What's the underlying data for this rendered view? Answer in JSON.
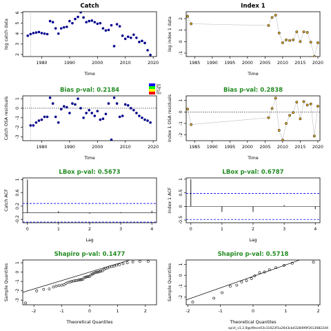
{
  "footer": "spict_v1.2.8@d9ece03c31623f1a26d3cb4328499f16136822d4",
  "colors": {
    "bias_title": "#228B22",
    "points_catch": "#00008B",
    "points_index": "#DAA520",
    "dash_blue": "#0000FF",
    "grey_line": "#BEBEBE"
  },
  "legend_years": [
    "Jan",
    "Apr",
    "Jul",
    "Oct"
  ],
  "chart_data": [
    {
      "id": "catch",
      "type": "scatter",
      "title": "Catch",
      "title_color": "#000000",
      "xlabel": "Time",
      "ylabel": "log catch data",
      "xlim": [
        1973.2,
        2021.2
      ],
      "ylim": [
        1.8,
        6.1
      ],
      "xticks": [
        1980,
        1990,
        2000,
        2010,
        2020
      ],
      "yticks": [
        2,
        3,
        4,
        5,
        6
      ],
      "vline_dotted": 1976,
      "x": [
        1975,
        1976,
        1977,
        1978,
        1979,
        1980,
        1981,
        1982,
        1983,
        1984,
        1985,
        1986,
        1987,
        1988,
        1989,
        1990,
        1991,
        1992,
        1993,
        1994,
        1995,
        1996,
        1997,
        1998,
        1999,
        2000,
        2001,
        2002,
        2003,
        2004,
        2005,
        2006,
        2007,
        2008,
        2009,
        2010,
        2011,
        2012,
        2013,
        2014,
        2015,
        2016,
        2017,
        2018,
        2019
      ],
      "y": [
        3.8,
        3.95,
        4.05,
        4.1,
        4.15,
        4.05,
        4.0,
        3.95,
        5.2,
        5.1,
        4.5,
        4.0,
        4.5,
        4.6,
        4.65,
        5.2,
        5.0,
        5.4,
        5.6,
        6.05,
        5.55,
        5.1,
        5.2,
        5.25,
        5.1,
        4.95,
        5.0,
        4.5,
        4.3,
        4.35,
        4.8,
        2.8,
        4.9,
        4.7,
        3.8,
        3.5,
        3.7,
        3.6,
        3.9,
        3.6,
        3.2,
        3.3,
        3.1,
        2.4,
        1.95
      ],
      "marker": "dot",
      "series_color": "#00008B"
    },
    {
      "id": "index1",
      "type": "scatter",
      "title": "Index 1",
      "title_color": "#000000",
      "xlabel": "Time",
      "ylabel": "log index 1 data",
      "xlim": [
        1982.6,
        2020.6
      ],
      "ylim": [
        -1.3,
        2.6
      ],
      "xticks": [
        1985,
        1990,
        1995,
        2000,
        2005,
        2010,
        2015,
        2020
      ],
      "yticks": [
        -1,
        0,
        1,
        2
      ],
      "vline_dotted": 1983,
      "x": [
        1983,
        1984,
        2006,
        2007,
        2008,
        2009,
        2010,
        2011,
        2012,
        2013,
        2014,
        2015,
        2016,
        2017,
        2018,
        2019,
        2020
      ],
      "y": [
        2.2,
        1.55,
        1.4,
        2.1,
        2.3,
        0.75,
        -0.1,
        0.15,
        0.1,
        0.15,
        0.85,
        0.0,
        0.85,
        0.8,
        -0.05,
        -1.3,
        -0.1
      ],
      "marker": "circle",
      "series_color": "#DAA520",
      "connect": true
    },
    {
      "id": "catch_bias",
      "type": "scatter",
      "title": "Bias p-val: 0.2184",
      "title_color": "#228B22",
      "xlabel": "Time",
      "ylabel": "Catch OSA residuals",
      "xlim": [
        1973.2,
        2021.2
      ],
      "ylim": [
        -3.4,
        1.3
      ],
      "xticks": [
        1980,
        1990,
        2000,
        2010,
        2020
      ],
      "yticks": [
        -3,
        -2,
        -1,
        0,
        1
      ],
      "vline_dotted": 1976,
      "hline_dotted": 0,
      "x": [
        1976,
        1977,
        1978,
        1979,
        1980,
        1981,
        1982,
        1983,
        1984,
        1985,
        1986,
        1987,
        1988,
        1989,
        1990,
        1991,
        1992,
        1993,
        1994,
        1995,
        1996,
        1997,
        1998,
        1999,
        2000,
        2001,
        2002,
        2003,
        2004,
        2005,
        2006,
        2007,
        2008,
        2009,
        2010,
        2011,
        2012,
        2013,
        2014,
        2015,
        2016,
        2017,
        2018,
        2019
      ],
      "y": [
        -1.8,
        -1.8,
        -1.5,
        -1.3,
        -1.2,
        -0.9,
        -0.9,
        1.1,
        0.5,
        -0.9,
        -1.5,
        -0.1,
        0.2,
        0.1,
        -0.5,
        0.5,
        0.4,
        1.0,
        0.0,
        -1.0,
        -0.5,
        -0.2,
        -0.5,
        -0.8,
        -0.3,
        -1.2,
        -1.1,
        -0.6,
        0.5,
        -3.3,
        1.1,
        0.5,
        -0.9,
        -0.8,
        0.4,
        0.3,
        0.0,
        -0.2,
        -0.5,
        -0.8,
        -1.0,
        -1.2,
        -1.3,
        -1.5
      ],
      "marker": "dot",
      "series_color": "#00008B"
    },
    {
      "id": "index_bias",
      "type": "scatter",
      "title": "Bias p-val: 0.2838",
      "title_color": "#228B22",
      "xlabel": "Time",
      "ylabel": "Index 1 OSA residuals",
      "xlim": [
        1982.6,
        2020.6
      ],
      "ylim": [
        -2.5,
        1.4
      ],
      "xticks": [
        1985,
        1990,
        1995,
        2000,
        2005,
        2010,
        2015,
        2020
      ],
      "yticks": [
        -2,
        -1,
        0,
        1
      ],
      "hline_dotted": 0,
      "x": [
        1983,
        1984,
        2006,
        2007,
        2008,
        2009,
        2010,
        2011,
        2012,
        2013,
        2014,
        2015,
        2016,
        2017,
        2018,
        2019,
        2020
      ],
      "y": [
        0.25,
        -1.1,
        -0.5,
        0.3,
        1.2,
        -1.6,
        -2.45,
        -1.0,
        -0.3,
        -0.05,
        0.85,
        -0.6,
        0.9,
        0.6,
        0.7,
        -2.1,
        0.5
      ],
      "marker": "circle",
      "series_color": "#DAA520",
      "connect": true
    },
    {
      "id": "catch_acf",
      "type": "bar",
      "title": "LBox p-val: 0.5673",
      "title_color": "#228B22",
      "xlabel": "Lag",
      "ylabel": "Catch ACF",
      "xlim": [
        -0.15,
        4.15
      ],
      "ylim": [
        -0.3,
        1.05
      ],
      "xticks": [
        0,
        1,
        2,
        3,
        4
      ],
      "yticks": [
        -0.2,
        0.2,
        0.6,
        1.0
      ],
      "lags": [
        0,
        1,
        2,
        3,
        4
      ],
      "values": [
        1.0,
        0.05,
        -0.03,
        0.02,
        0.06
      ],
      "ci": 0.28
    },
    {
      "id": "index_acf",
      "type": "bar",
      "title": "LBox p-val: 0.6787",
      "title_color": "#228B22",
      "xlabel": "Lag",
      "ylabel": "Index 1 ACF",
      "xlim": [
        -0.15,
        4.15
      ],
      "ylim": [
        -0.6,
        1.05
      ],
      "xticks": [
        0,
        1,
        2,
        3,
        4
      ],
      "yticks": [
        -0.5,
        0.0,
        0.5,
        1.0
      ],
      "lags": [
        0,
        1,
        2,
        3,
        4
      ],
      "values": [
        1.0,
        -0.2,
        -0.2,
        0.05,
        -0.1
      ],
      "ci": 0.48
    },
    {
      "id": "catch_qq",
      "type": "scatter",
      "title": "Shapiro p-val: 0.1477",
      "title_color": "#228B22",
      "xlabel": "Theoretical Quantiles",
      "ylabel": "Sample Quantiles",
      "xlim": [
        -2.4,
        2.4
      ],
      "ylim": [
        -3.5,
        1.3
      ],
      "xticks": [
        -2,
        -1,
        0,
        1,
        2
      ],
      "yticks": [
        -3,
        -2,
        -1,
        0,
        1
      ],
      "qq_line": [
        0.0,
        0.9
      ],
      "x": [
        -2.3,
        -1.9,
        -1.65,
        -1.45,
        -1.3,
        -1.2,
        -1.1,
        -1.0,
        -0.92,
        -0.85,
        -0.78,
        -0.7,
        -0.64,
        -0.58,
        -0.52,
        -0.46,
        -0.4,
        -0.35,
        -0.3,
        -0.25,
        -0.2,
        -0.15,
        -0.1,
        -0.05,
        0.0,
        0.05,
        0.1,
        0.15,
        0.2,
        0.25,
        0.3,
        0.35,
        0.4,
        0.46,
        0.52,
        0.58,
        0.65,
        0.72,
        0.8,
        0.88,
        0.97,
        1.07,
        1.2,
        1.35,
        1.55,
        1.8,
        2.1
      ],
      "y": [
        -3.3,
        -2.0,
        -1.85,
        -1.8,
        -1.6,
        -1.5,
        -1.45,
        -1.4,
        -1.35,
        -1.2,
        -1.1,
        -1.05,
        -1.0,
        -0.95,
        -0.92,
        -0.9,
        -0.85,
        -0.82,
        -0.8,
        -0.78,
        -0.6,
        -0.55,
        -0.5,
        -0.47,
        -0.45,
        -0.3,
        -0.2,
        -0.15,
        -0.05,
        0.0,
        0.0,
        0.05,
        0.1,
        0.15,
        0.3,
        0.4,
        0.45,
        0.55,
        0.6,
        0.65,
        0.75,
        0.8,
        0.9,
        1.0,
        1.1,
        1.15,
        1.15
      ],
      "marker": "circle"
    },
    {
      "id": "index_qq",
      "type": "scatter",
      "title": "Shapiro p-val: 0.5718",
      "title_color": "#228B22",
      "xlabel": "Theoretical Quantiles",
      "ylabel": "Sample Quantiles",
      "xlim": [
        -2.05,
        2.05
      ],
      "ylim": [
        -2.7,
        1.4
      ],
      "xticks": [
        -2,
        -1,
        0,
        1,
        2
      ],
      "yticks": [
        -2,
        -1,
        0,
        1
      ],
      "qq_line": [
        -0.1,
        1.05
      ],
      "x": [
        -1.85,
        -1.2,
        -0.95,
        -0.7,
        -0.5,
        -0.35,
        -0.2,
        -0.05,
        0.05,
        0.2,
        0.35,
        0.5,
        0.7,
        0.95,
        1.2,
        1.85
      ],
      "y": [
        -2.45,
        -2.1,
        -1.6,
        -1.0,
        -0.9,
        -0.6,
        -0.5,
        -0.3,
        -0.05,
        0.25,
        0.3,
        0.5,
        0.7,
        0.9,
        1.1,
        1.2
      ],
      "marker": "circle"
    }
  ]
}
